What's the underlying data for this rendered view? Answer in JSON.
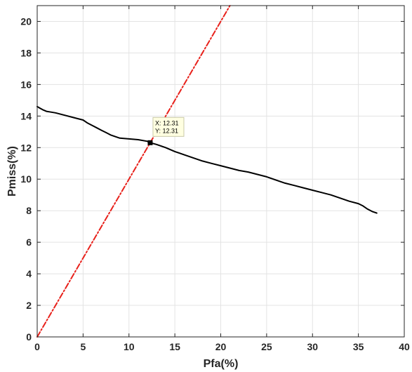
{
  "chart_data": {
    "type": "line",
    "xlabel": "Pfa(%)",
    "ylabel": "Pmiss(%)",
    "xlim": [
      0,
      40
    ],
    "ylim": [
      0,
      21
    ],
    "xticks": [
      0,
      5,
      10,
      15,
      20,
      25,
      30,
      35,
      40
    ],
    "yticks": [
      0,
      2,
      4,
      6,
      8,
      10,
      12,
      14,
      16,
      18,
      20
    ],
    "grid": true,
    "series": [
      {
        "style": "solid",
        "color": "#000000",
        "x": [
          0,
          0.3,
          0.6,
          1,
          1.5,
          2,
          3,
          4,
          5,
          5.5,
          6,
          6.5,
          7,
          7.5,
          8,
          8.5,
          9,
          10,
          11,
          12,
          12.31,
          13,
          14,
          15,
          16,
          17,
          18,
          19,
          20,
          21,
          22,
          23,
          24,
          25,
          26,
          27,
          28,
          29,
          30,
          31,
          32,
          33,
          34,
          35,
          35.5,
          36,
          36.5,
          37
        ],
        "y": [
          14.6,
          14.5,
          14.4,
          14.3,
          14.25,
          14.2,
          14.05,
          13.9,
          13.75,
          13.55,
          13.4,
          13.25,
          13.1,
          12.95,
          12.8,
          12.7,
          12.6,
          12.55,
          12.5,
          12.4,
          12.31,
          12.2,
          12.0,
          11.75,
          11.55,
          11.35,
          11.15,
          11.0,
          10.85,
          10.7,
          10.55,
          10.45,
          10.3,
          10.15,
          9.95,
          9.75,
          9.6,
          9.45,
          9.3,
          9.15,
          9.0,
          8.8,
          8.6,
          8.45,
          8.3,
          8.1,
          7.95,
          7.85
        ]
      },
      {
        "style": "dash-dot",
        "color": "#e8211b",
        "x": [
          0,
          21
        ],
        "y": [
          0,
          21
        ]
      }
    ],
    "datatip": {
      "x": 12.31,
      "y": 12.31,
      "line1": "X: 12.31",
      "line2": "Y: 12.31"
    }
  }
}
